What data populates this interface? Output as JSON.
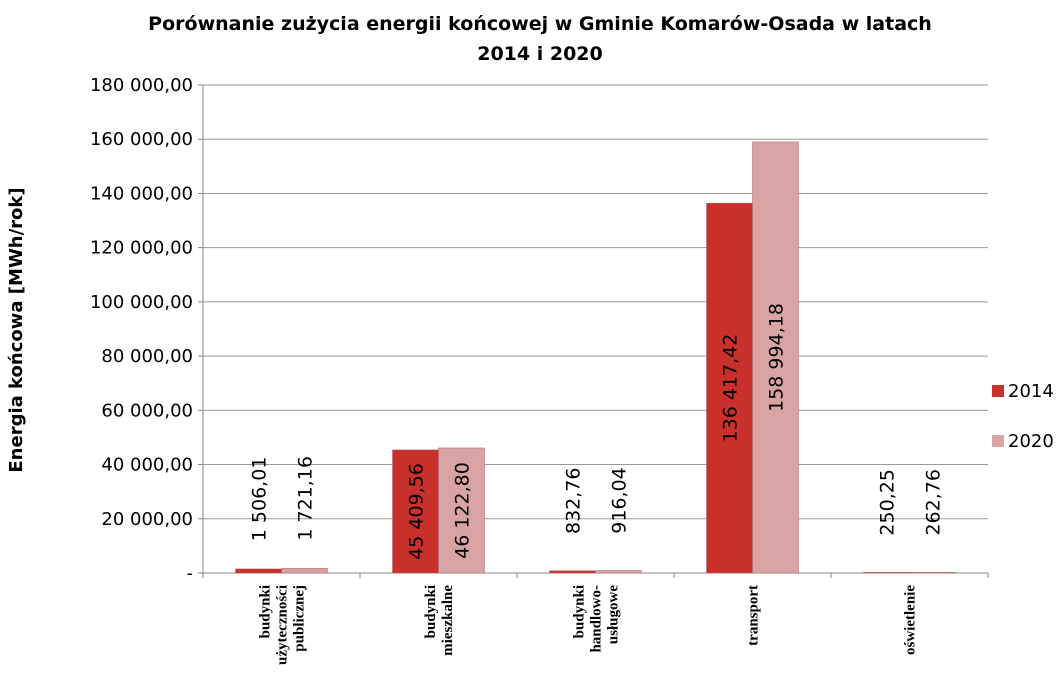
{
  "chart_data": {
    "type": "bar",
    "title": "Porównanie zużycia energii końcowej w Gminie Komarów-Osada w latach\n2014 i 2020",
    "y_label": "Energia końcowa [MWh/rok]",
    "categories": [
      "budynki\nużyteczności\npublicznej",
      "budynki\nmieszkalne",
      "budynki\nhandlowo-\nusługowe",
      "transport",
      "oświetlenie"
    ],
    "series": [
      {
        "name": "2014",
        "color": "#c9302c",
        "values": [
          1506.01,
          45409.56,
          832.76,
          136417.42,
          250.25
        ],
        "value_labels": [
          "1 506,01",
          "45 409,56",
          "832,76",
          "136 417,42",
          "250,25"
        ]
      },
      {
        "name": "2020",
        "color": "#d9a3a3",
        "values": [
          1721.16,
          46122.8,
          916.04,
          158994.18,
          262.76
        ],
        "value_labels": [
          "1 721,16",
          "46 122,80",
          "916,04",
          "158 994,18",
          "262,76"
        ]
      }
    ],
    "ylim": [
      0,
      180000
    ],
    "yticks": [
      {
        "value": 0,
        "label": "-"
      },
      {
        "value": 20000,
        "label": "20 000,00"
      },
      {
        "value": 40000,
        "label": "40 000,00"
      },
      {
        "value": 60000,
        "label": "60 000,00"
      },
      {
        "value": 80000,
        "label": "80 000,00"
      },
      {
        "value": 100000,
        "label": "100 000,00"
      },
      {
        "value": 120000,
        "label": "120 000,00"
      },
      {
        "value": 140000,
        "label": "140 000,00"
      },
      {
        "value": 160000,
        "label": "160 000,00"
      },
      {
        "value": 180000,
        "label": "180 000,00"
      }
    ],
    "grid": true,
    "legend": "right"
  }
}
